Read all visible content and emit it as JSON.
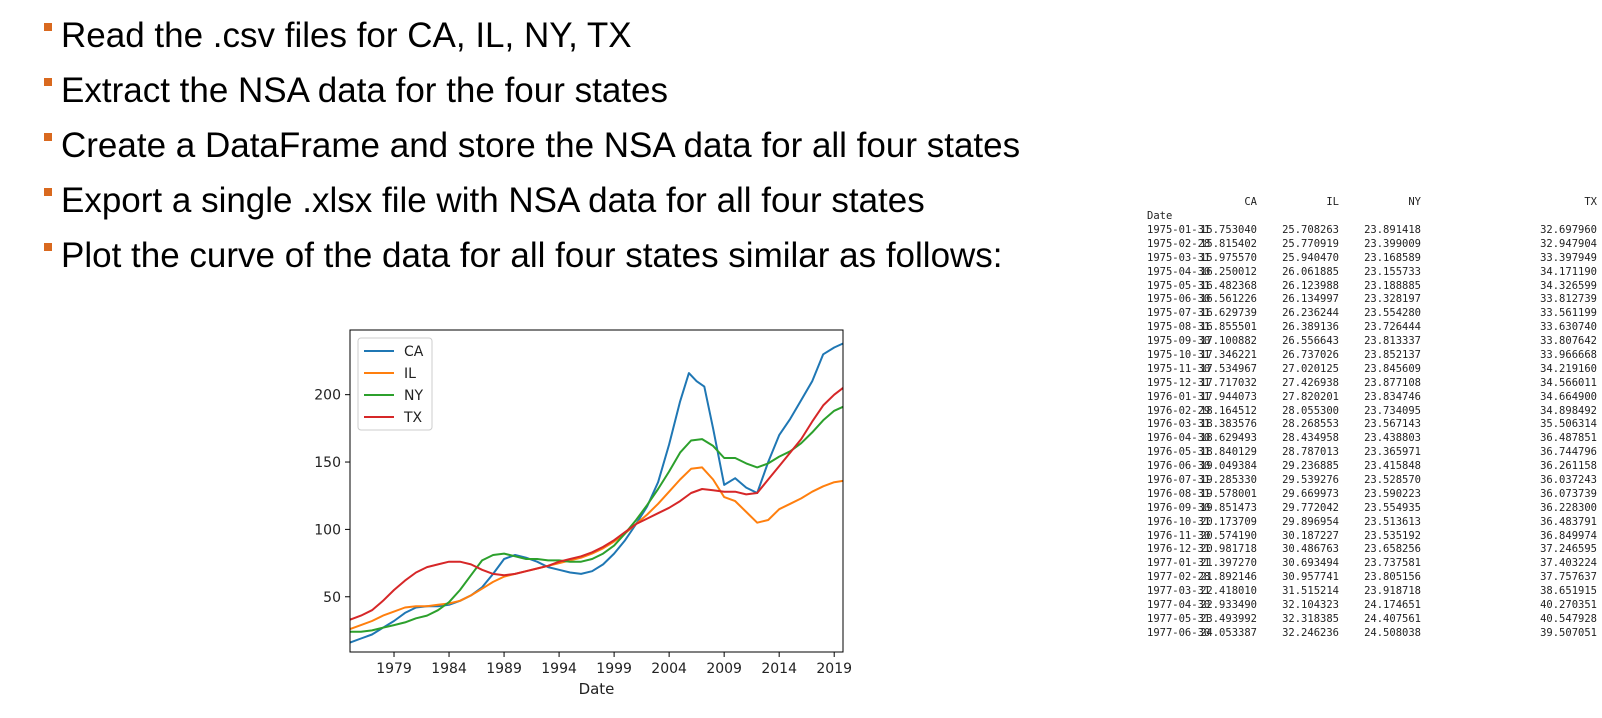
{
  "bullets": [
    "Read the .csv files for CA, IL, NY, TX",
    "Extract the NSA data for the four states",
    "Create a DataFrame and store the NSA data for all four states",
    "Export a single .xlsx file with NSA data for all four states",
    "Plot the curve of the data for all four states similar as follows:"
  ],
  "colors": {
    "bullet_marker": "#d9691f",
    "CA": "#1f77b4",
    "IL": "#ff7f0e",
    "NY": "#2ca02c",
    "TX": "#d62728"
  },
  "table": {
    "index_label": "Date",
    "columns": [
      "CA",
      "IL",
      "NY",
      "TX"
    ],
    "rows": [
      [
        "1975-01-31",
        "15.753040",
        "25.708263",
        "23.891418",
        "32.697960"
      ],
      [
        "1975-02-28",
        "15.815402",
        "25.770919",
        "23.399009",
        "32.947904"
      ],
      [
        "1975-03-31",
        "15.975570",
        "25.940470",
        "23.168589",
        "33.397949"
      ],
      [
        "1975-04-30",
        "16.250012",
        "26.061885",
        "23.155733",
        "34.171190"
      ],
      [
        "1975-05-31",
        "16.482368",
        "26.123988",
        "23.188885",
        "34.326599"
      ],
      [
        "1975-06-30",
        "16.561226",
        "26.134997",
        "23.328197",
        "33.812739"
      ],
      [
        "1975-07-31",
        "16.629739",
        "26.236244",
        "23.554280",
        "33.561199"
      ],
      [
        "1975-08-31",
        "16.855501",
        "26.389136",
        "23.726444",
        "33.630740"
      ],
      [
        "1975-09-30",
        "17.100882",
        "26.556643",
        "23.813337",
        "33.807642"
      ],
      [
        "1975-10-31",
        "17.346221",
        "26.737026",
        "23.852137",
        "33.966668"
      ],
      [
        "1975-11-30",
        "17.534967",
        "27.020125",
        "23.845609",
        "34.219160"
      ],
      [
        "1975-12-31",
        "17.717032",
        "27.426938",
        "23.877108",
        "34.566011"
      ],
      [
        "1976-01-31",
        "17.944073",
        "27.820201",
        "23.834746",
        "34.664900"
      ],
      [
        "1976-02-29",
        "18.164512",
        "28.055300",
        "23.734095",
        "34.898492"
      ],
      [
        "1976-03-31",
        "18.383576",
        "28.268553",
        "23.567143",
        "35.506314"
      ],
      [
        "1976-04-30",
        "18.629493",
        "28.434958",
        "23.438803",
        "36.487851"
      ],
      [
        "1976-05-31",
        "18.840129",
        "28.787013",
        "23.365971",
        "36.744796"
      ],
      [
        "1976-06-30",
        "19.049384",
        "29.236885",
        "23.415848",
        "36.261158"
      ],
      [
        "1976-07-31",
        "19.285330",
        "29.539276",
        "23.528570",
        "36.037243"
      ],
      [
        "1976-08-31",
        "19.578001",
        "29.669973",
        "23.590223",
        "36.073739"
      ],
      [
        "1976-09-30",
        "19.851473",
        "29.772042",
        "23.554935",
        "36.228300"
      ],
      [
        "1976-10-31",
        "20.173709",
        "29.896954",
        "23.513613",
        "36.483791"
      ],
      [
        "1976-11-30",
        "20.574190",
        "30.187227",
        "23.535192",
        "36.849974"
      ],
      [
        "1976-12-31",
        "20.981718",
        "30.486763",
        "23.658256",
        "37.246595"
      ],
      [
        "1977-01-31",
        "21.397270",
        "30.693494",
        "23.737581",
        "37.403224"
      ],
      [
        "1977-02-28",
        "21.892146",
        "30.957741",
        "23.805156",
        "37.757637"
      ],
      [
        "1977-03-31",
        "22.418010",
        "31.515214",
        "23.918718",
        "38.651915"
      ],
      [
        "1977-04-30",
        "22.933490",
        "32.104323",
        "24.174651",
        "40.270351"
      ],
      [
        "1977-05-31",
        "23.493992",
        "32.318385",
        "24.407561",
        "40.547928"
      ],
      [
        "1977-06-30",
        "24.053387",
        "32.246236",
        "24.508038",
        "39.507051"
      ]
    ]
  },
  "chart_data": {
    "type": "line",
    "xlabel": "Date",
    "ylabel": "",
    "xlim": [
      1975.0,
      2019.8
    ],
    "ylim": [
      9,
      248
    ],
    "xticks": [
      1979,
      1984,
      1989,
      1994,
      1999,
      2004,
      2009,
      2014,
      2019
    ],
    "yticks": [
      50,
      100,
      150,
      200
    ],
    "grid": false,
    "legend": "top-left",
    "series": [
      {
        "name": "CA",
        "points": [
          [
            1975.0,
            16
          ],
          [
            1976.0,
            19
          ],
          [
            1977.0,
            22
          ],
          [
            1978.0,
            27
          ],
          [
            1979.0,
            32
          ],
          [
            1980.0,
            38
          ],
          [
            1981.0,
            42
          ],
          [
            1982.0,
            43
          ],
          [
            1983.0,
            43
          ],
          [
            1984.0,
            44
          ],
          [
            1985.0,
            47
          ],
          [
            1986.0,
            51
          ],
          [
            1987.0,
            57
          ],
          [
            1988.0,
            67
          ],
          [
            1989.0,
            78
          ],
          [
            1990.0,
            81
          ],
          [
            1991.0,
            79
          ],
          [
            1992.0,
            76
          ],
          [
            1993.0,
            72
          ],
          [
            1994.0,
            70
          ],
          [
            1995.0,
            68
          ],
          [
            1996.0,
            67
          ],
          [
            1997.0,
            69
          ],
          [
            1998.0,
            74
          ],
          [
            1999.0,
            82
          ],
          [
            2000.0,
            92
          ],
          [
            2001.0,
            104
          ],
          [
            2002.0,
            117
          ],
          [
            2003.0,
            135
          ],
          [
            2004.0,
            163
          ],
          [
            2005.0,
            195
          ],
          [
            2005.8,
            216
          ],
          [
            2006.5,
            210
          ],
          [
            2007.2,
            206
          ],
          [
            2008.0,
            175
          ],
          [
            2009.0,
            133
          ],
          [
            2010.0,
            138
          ],
          [
            2011.0,
            131
          ],
          [
            2012.0,
            127
          ],
          [
            2013.0,
            150
          ],
          [
            2014.0,
            170
          ],
          [
            2015.0,
            182
          ],
          [
            2016.0,
            196
          ],
          [
            2017.0,
            210
          ],
          [
            2018.0,
            230
          ],
          [
            2019.0,
            235
          ],
          [
            2019.8,
            238
          ]
        ]
      },
      {
        "name": "IL",
        "points": [
          [
            1975.0,
            26
          ],
          [
            1976.0,
            29
          ],
          [
            1977.0,
            32
          ],
          [
            1978.0,
            36
          ],
          [
            1979.0,
            39
          ],
          [
            1980.0,
            42
          ],
          [
            1981.0,
            43
          ],
          [
            1982.0,
            43
          ],
          [
            1983.0,
            44
          ],
          [
            1984.0,
            45
          ],
          [
            1985.0,
            47
          ],
          [
            1986.0,
            51
          ],
          [
            1987.0,
            56
          ],
          [
            1988.0,
            61
          ],
          [
            1989.0,
            65
          ],
          [
            1990.0,
            67
          ],
          [
            1991.0,
            69
          ],
          [
            1992.0,
            71
          ],
          [
            1993.0,
            73
          ],
          [
            1994.0,
            75
          ],
          [
            1995.0,
            77
          ],
          [
            1996.0,
            79
          ],
          [
            1997.0,
            82
          ],
          [
            1998.0,
            86
          ],
          [
            1999.0,
            91
          ],
          [
            2000.0,
            97
          ],
          [
            2001.0,
            104
          ],
          [
            2002.0,
            111
          ],
          [
            2003.0,
            119
          ],
          [
            2004.0,
            128
          ],
          [
            2005.0,
            137
          ],
          [
            2006.0,
            145
          ],
          [
            2007.0,
            146
          ],
          [
            2008.0,
            137
          ],
          [
            2009.0,
            124
          ],
          [
            2010.0,
            121
          ],
          [
            2011.0,
            113
          ],
          [
            2012.0,
            105
          ],
          [
            2013.0,
            107
          ],
          [
            2014.0,
            115
          ],
          [
            2015.0,
            119
          ],
          [
            2016.0,
            123
          ],
          [
            2017.0,
            128
          ],
          [
            2018.0,
            132
          ],
          [
            2019.0,
            135
          ],
          [
            2019.8,
            136
          ]
        ]
      },
      {
        "name": "NY",
        "points": [
          [
            1975.0,
            24
          ],
          [
            1976.0,
            24
          ],
          [
            1977.0,
            25
          ],
          [
            1978.0,
            27
          ],
          [
            1979.0,
            29
          ],
          [
            1980.0,
            31
          ],
          [
            1981.0,
            34
          ],
          [
            1982.0,
            36
          ],
          [
            1983.0,
            40
          ],
          [
            1984.0,
            46
          ],
          [
            1985.0,
            55
          ],
          [
            1986.0,
            66
          ],
          [
            1987.0,
            77
          ],
          [
            1988.0,
            81
          ],
          [
            1989.0,
            82
          ],
          [
            1990.0,
            80
          ],
          [
            1991.0,
            78
          ],
          [
            1992.0,
            78
          ],
          [
            1993.0,
            77
          ],
          [
            1994.0,
            77
          ],
          [
            1995.0,
            76
          ],
          [
            1996.0,
            76
          ],
          [
            1997.0,
            78
          ],
          [
            1998.0,
            82
          ],
          [
            1999.0,
            88
          ],
          [
            2000.0,
            97
          ],
          [
            2001.0,
            107
          ],
          [
            2002.0,
            118
          ],
          [
            2003.0,
            130
          ],
          [
            2004.0,
            143
          ],
          [
            2005.0,
            157
          ],
          [
            2006.0,
            166
          ],
          [
            2007.0,
            167
          ],
          [
            2008.0,
            162
          ],
          [
            2009.0,
            153
          ],
          [
            2010.0,
            153
          ],
          [
            2011.0,
            149
          ],
          [
            2012.0,
            146
          ],
          [
            2013.0,
            149
          ],
          [
            2014.0,
            154
          ],
          [
            2015.0,
            158
          ],
          [
            2016.0,
            164
          ],
          [
            2017.0,
            172
          ],
          [
            2018.0,
            181
          ],
          [
            2019.0,
            188
          ],
          [
            2019.8,
            191
          ]
        ]
      },
      {
        "name": "TX",
        "points": [
          [
            1975.0,
            33
          ],
          [
            1976.0,
            36
          ],
          [
            1977.0,
            40
          ],
          [
            1978.0,
            47
          ],
          [
            1979.0,
            55
          ],
          [
            1980.0,
            62
          ],
          [
            1981.0,
            68
          ],
          [
            1982.0,
            72
          ],
          [
            1983.0,
            74
          ],
          [
            1984.0,
            76
          ],
          [
            1985.0,
            76
          ],
          [
            1986.0,
            74
          ],
          [
            1987.0,
            70
          ],
          [
            1988.0,
            67
          ],
          [
            1989.0,
            66
          ],
          [
            1990.0,
            67
          ],
          [
            1991.0,
            69
          ],
          [
            1992.0,
            71
          ],
          [
            1993.0,
            73
          ],
          [
            1994.0,
            76
          ],
          [
            1995.0,
            78
          ],
          [
            1996.0,
            80
          ],
          [
            1997.0,
            83
          ],
          [
            1998.0,
            87
          ],
          [
            1999.0,
            92
          ],
          [
            2000.0,
            98
          ],
          [
            2001.0,
            104
          ],
          [
            2002.0,
            108
          ],
          [
            2003.0,
            112
          ],
          [
            2004.0,
            116
          ],
          [
            2005.0,
            121
          ],
          [
            2006.0,
            127
          ],
          [
            2007.0,
            130
          ],
          [
            2008.0,
            129
          ],
          [
            2009.0,
            128
          ],
          [
            2010.0,
            128
          ],
          [
            2011.0,
            126
          ],
          [
            2012.0,
            127
          ],
          [
            2013.0,
            137
          ],
          [
            2014.0,
            147
          ],
          [
            2015.0,
            157
          ],
          [
            2016.0,
            167
          ],
          [
            2017.0,
            180
          ],
          [
            2018.0,
            192
          ],
          [
            2019.0,
            200
          ],
          [
            2019.8,
            205
          ]
        ]
      }
    ]
  }
}
